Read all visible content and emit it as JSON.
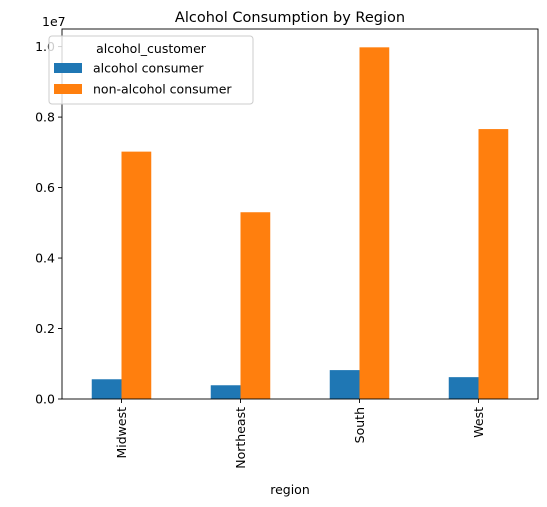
{
  "chart_data": {
    "type": "bar",
    "title": "Alcohol Consumption by Region",
    "xlabel": "region",
    "ylabel": "",
    "y_offset_label": "1e7",
    "y_scale": 10000000,
    "ylim": [
      0,
      10500000
    ],
    "yticks": [
      0,
      2000000,
      4000000,
      6000000,
      8000000,
      10000000
    ],
    "ytick_labels": [
      "0.0",
      "0.2",
      "0.4",
      "0.6",
      "0.8",
      "1.0"
    ],
    "categories": [
      "Midwest",
      "Northeast",
      "South",
      "West"
    ],
    "legend_title": "alcohol_customer",
    "legend_position": "upper-left",
    "series": [
      {
        "name": "alcohol consumer",
        "color": "#1f77b4",
        "values": [
          560000,
          390000,
          820000,
          620000
        ]
      },
      {
        "name": "non-alcohol consumer",
        "color": "#ff7f0e",
        "values": [
          7020000,
          5300000,
          9980000,
          7660000
        ]
      }
    ]
  }
}
